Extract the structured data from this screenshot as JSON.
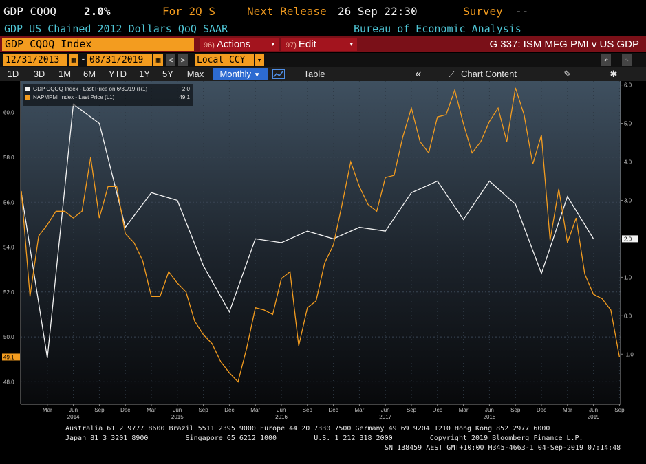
{
  "header": {
    "ticker": "GDP CQOQ",
    "value": "2.0%",
    "period": "For 2Q S",
    "next_release_label": "Next Release",
    "next_release_date": "26 Sep 22:30",
    "survey_label": "Survey",
    "survey_value": "--",
    "description": "GDP US Chained 2012 Dollars QoQ SAAR",
    "source": "Bureau of Economic Analysis"
  },
  "toolbar": {
    "security": "GDP CQOQ Index",
    "actions_num": "96)",
    "actions_label": "Actions",
    "edit_num": "97)",
    "edit_label": "Edit",
    "chart_title": "G 337: ISM MFG PMI v US GDP"
  },
  "dates": {
    "start": "12/31/2013",
    "sep": "-",
    "end": "08/31/2019",
    "currency": "Local CCY",
    "prev": "<",
    "next": ">"
  },
  "nav": {
    "periods": [
      "1D",
      "3D",
      "1M",
      "6M",
      "YTD",
      "1Y",
      "5Y",
      "Max"
    ],
    "frequency": "Monthly",
    "table": "Table",
    "chart_content": "Chart Content",
    "collapse": "«",
    "gear": "✱",
    "undo": "↶",
    "redo": "↷"
  },
  "colors": {
    "gdp": "#f2f2f2",
    "pmi": "#f39c1f",
    "accent": "#7a1018"
  },
  "chart_data": {
    "type": "line",
    "legend": [
      {
        "name": "GDP CQOQ Index - Last Price on 6/30/19 (R1)",
        "value": "2.0"
      },
      {
        "name": "NAPMPMI Index - Last Price (L1)",
        "value": "49.1"
      }
    ],
    "left_axis": {
      "ticks": [
        "48.0",
        "50.0",
        "52.0",
        "54.0",
        "56.0",
        "58.0",
        "60.0"
      ],
      "range": [
        47.0,
        61.4
      ]
    },
    "right_axis": {
      "ticks": [
        "-1.0",
        "0.0",
        "1.0",
        "2.0",
        "3.0",
        "4.0",
        "5.0",
        "6.0"
      ],
      "range": [
        -2.3,
        6.1
      ]
    },
    "last_value_labels": {
      "gdp": "2.0",
      "pmi": "49.1"
    },
    "x_month_labels": [
      {
        "m": 2,
        "label": "Mar"
      },
      {
        "m": 5,
        "label": "Jun"
      },
      {
        "m": 8,
        "label": "Sep"
      },
      {
        "m": 11,
        "label": "Dec"
      },
      {
        "m": 14,
        "label": "Mar"
      },
      {
        "m": 17,
        "label": "Jun"
      },
      {
        "m": 20,
        "label": "Sep"
      },
      {
        "m": 23,
        "label": "Dec"
      },
      {
        "m": 26,
        "label": "Mar"
      },
      {
        "m": 29,
        "label": "Jun"
      },
      {
        "m": 32,
        "label": "Sep"
      },
      {
        "m": 35,
        "label": "Dec"
      },
      {
        "m": 38,
        "label": "Mar"
      },
      {
        "m": 41,
        "label": "Jun"
      },
      {
        "m": 44,
        "label": "Sep"
      },
      {
        "m": 47,
        "label": "Dec"
      },
      {
        "m": 50,
        "label": "Mar"
      },
      {
        "m": 53,
        "label": "Jun"
      },
      {
        "m": 56,
        "label": "Sep"
      },
      {
        "m": 59,
        "label": "Dec"
      },
      {
        "m": 62,
        "label": "Mar"
      },
      {
        "m": 65,
        "label": "Jun"
      },
      {
        "m": 68,
        "label": "Sep"
      }
    ],
    "x_year_labels": [
      {
        "m": 5,
        "label": "2014"
      },
      {
        "m": 17,
        "label": "2015"
      },
      {
        "m": 29,
        "label": "2016"
      },
      {
        "m": 41,
        "label": "2017"
      },
      {
        "m": 53,
        "label": "2018"
      },
      {
        "m": 65,
        "label": "2019"
      }
    ],
    "series": [
      {
        "name": "GDP CQOQ Index",
        "axis": "right",
        "points": [
          {
            "m": -1,
            "v": 3.2
          },
          {
            "m": 2,
            "v": -1.1
          },
          {
            "m": 5,
            "v": 5.5
          },
          {
            "m": 8,
            "v": 5.0
          },
          {
            "m": 11,
            "v": 2.3
          },
          {
            "m": 14,
            "v": 3.2
          },
          {
            "m": 17,
            "v": 3.0
          },
          {
            "m": 20,
            "v": 1.3
          },
          {
            "m": 23,
            "v": 0.1
          },
          {
            "m": 26,
            "v": 2.0
          },
          {
            "m": 29,
            "v": 1.9
          },
          {
            "m": 32,
            "v": 2.2
          },
          {
            "m": 35,
            "v": 2.0
          },
          {
            "m": 38,
            "v": 2.3
          },
          {
            "m": 41,
            "v": 2.2
          },
          {
            "m": 44,
            "v": 3.2
          },
          {
            "m": 47,
            "v": 3.5
          },
          {
            "m": 50,
            "v": 2.5
          },
          {
            "m": 53,
            "v": 3.5
          },
          {
            "m": 56,
            "v": 2.9
          },
          {
            "m": 59,
            "v": 1.1
          },
          {
            "m": 62,
            "v": 3.1
          },
          {
            "m": 65,
            "v": 2.0
          }
        ]
      },
      {
        "name": "NAPMPMI Index",
        "axis": "left",
        "values": [
          56.5,
          51.8,
          54.5,
          55.0,
          55.6,
          55.6,
          55.3,
          55.6,
          58.0,
          55.3,
          56.7,
          56.7,
          54.6,
          54.2,
          53.4,
          51.8,
          51.8,
          52.9,
          52.4,
          52.0,
          50.7,
          50.1,
          49.7,
          48.9,
          48.4,
          48.0,
          49.5,
          51.3,
          51.2,
          51.0,
          52.6,
          52.9,
          49.6,
          51.3,
          51.6,
          53.3,
          54.1,
          55.9,
          57.8,
          56.7,
          55.9,
          55.6,
          57.1,
          57.2,
          58.9,
          60.2,
          58.7,
          58.2,
          59.8,
          59.9,
          61.0,
          59.5,
          58.2,
          58.7,
          59.6,
          60.2,
          58.7,
          61.1,
          59.9,
          57.7,
          59.0,
          54.3,
          56.6,
          54.2,
          55.3,
          52.8,
          51.9,
          51.7,
          51.2,
          49.1
        ]
      }
    ]
  },
  "footer": {
    "line1": "Australia 61 2 9777 8600 Brazil 5511 2395 9000 Europe 44 20 7330 7500 Germany 49 69 9204 1210 Hong Kong 852 2977 6000",
    "line2": "Japan 81 3 3201 8900         Singapore 65 6212 1000         U.S. 1 212 318 2000         Copyright 2019 Bloomberg Finance L.P.",
    "line3": "SN 138459 AEST GMT+10:00 H345-4663-1 04-Sep-2019 07:14:48"
  }
}
